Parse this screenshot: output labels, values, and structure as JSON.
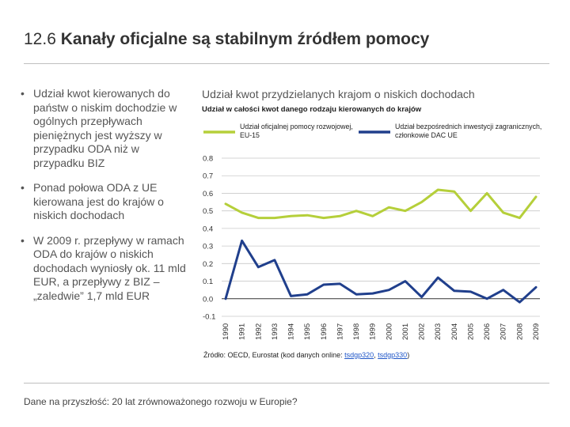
{
  "slide": {
    "title_number": "12.6",
    "title_text": "Kanały oficjalne są stabilnym źródłem pomocy",
    "footer": "Dane na przyszłość: 20 lat zrównoważonego rozwoju w Europie?"
  },
  "bullets": [
    {
      "marker": "•",
      "text": "Udział kwot kierowanych do państw o niskim dochodzie w ogólnych przepływach pieniężnych jest wyższy w przypadku ODA niż w przypadku BIZ"
    },
    {
      "marker": "•",
      "text": "Ponad połowa ODA z UE kierowana jest do krajów o niskich dochodach"
    },
    {
      "marker": "•",
      "text": "W 2009 r. przepływy w ramach ODA do krajów o niskich dochodach wyniosły ok. 11 mld EUR, a przepływy z BIZ – „zaledwie” 1,7 mld EUR"
    }
  ],
  "source": {
    "prefix": "Źródło: OECD, Eurostat (kod danych online: ",
    "link1": "tsdgp320",
    "sep": ", ",
    "link2": "tsdgp330",
    "suffix": ")"
  },
  "chart_data": {
    "type": "line",
    "title": "Udział kwot przydzielanych krajom o niskich dochodach",
    "subtitle": "Udział w całości kwot danego rodzaju kierowanych do krajów",
    "x": [
      "1990",
      "1991",
      "1992",
      "1993",
      "1994",
      "1995",
      "1996",
      "1997",
      "1998",
      "1999",
      "2000",
      "2001",
      "2002",
      "2003",
      "2004",
      "2005",
      "2006",
      "2007",
      "2008",
      "2009"
    ],
    "ylim": [
      -0.1,
      0.8
    ],
    "yticks": [
      "0.8",
      "0.7",
      "0.6",
      "0.5",
      "0.4",
      "0.3",
      "0.2",
      "0.1",
      "0.0",
      "-0.1"
    ],
    "grid": true,
    "series": [
      {
        "name": "Udział oficjalnej pomocy rozwojowej, EU-15",
        "color": "#b5cf3a",
        "values": [
          0.54,
          0.49,
          0.46,
          0.46,
          0.47,
          0.475,
          0.46,
          0.47,
          0.5,
          0.47,
          0.52,
          0.5,
          0.55,
          0.62,
          0.61,
          0.5,
          0.6,
          0.49,
          0.46,
          0.58
        ]
      },
      {
        "name": "Udział bezpośrednich inwestycji zagranicznych, członkowie DAC UE",
        "color": "#203f8c",
        "values": [
          0.0,
          0.33,
          0.18,
          0.22,
          0.015,
          0.025,
          0.08,
          0.085,
          0.025,
          0.03,
          0.05,
          0.1,
          0.01,
          0.12,
          0.045,
          0.04,
          0.0,
          0.05,
          -0.02,
          0.065
        ]
      }
    ]
  }
}
